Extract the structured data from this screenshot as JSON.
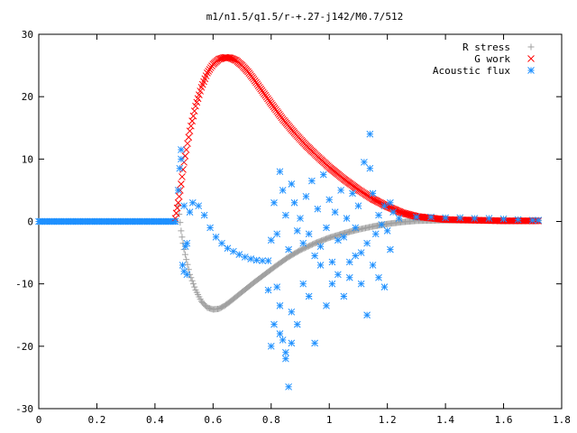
{
  "chart_data": {
    "type": "scatter",
    "title": "m1/n1.5/q1.5/r-+.27-j142/M0.7/512",
    "xlabel": "",
    "ylabel": "",
    "xlim": [
      0,
      1.8
    ],
    "ylim": [
      -30,
      30
    ],
    "x_ticks": [
      0,
      0.2,
      0.4,
      0.6,
      0.8,
      1,
      1.2,
      1.4,
      1.6,
      1.8
    ],
    "x_tick_labels": [
      "0",
      "0.2",
      "0.4",
      "0.6",
      "0.8",
      "1",
      "1.2",
      "1.4",
      "1.6",
      "1.8"
    ],
    "y_ticks": [
      -30,
      -20,
      -10,
      0,
      10,
      20,
      30
    ],
    "y_tick_labels": [
      "-30",
      "-20",
      "-10",
      "0",
      "10",
      "20",
      "30"
    ],
    "grid": false,
    "legend_position": "top-right",
    "series": [
      {
        "name": "R stress",
        "marker": "plus",
        "color": "#a0a0a0",
        "x": [
          0.48,
          0.49,
          0.5,
          0.52,
          0.54,
          0.56,
          0.58,
          0.6,
          0.62,
          0.64,
          0.66,
          0.7,
          0.74,
          0.78,
          0.82,
          0.86,
          0.9,
          0.95,
          1.0,
          1.05,
          1.1,
          1.15,
          1.2,
          1.25,
          1.3,
          1.4,
          1.5,
          1.6,
          1.7,
          1.72
        ],
        "y": [
          2.5,
          -1.5,
          -4.5,
          -8.5,
          -11.0,
          -12.8,
          -13.8,
          -14.1,
          -14.0,
          -13.5,
          -12.8,
          -11.3,
          -9.8,
          -8.4,
          -7.0,
          -5.7,
          -4.6,
          -3.5,
          -2.6,
          -1.9,
          -1.3,
          -0.8,
          -0.4,
          -0.1,
          0.1,
          0.2,
          0.2,
          0.1,
          0.1,
          0.1
        ]
      },
      {
        "name": "G work",
        "marker": "cross",
        "color": "#ff0000",
        "x": [
          0.47,
          0.48,
          0.49,
          0.5,
          0.52,
          0.54,
          0.56,
          0.58,
          0.6,
          0.62,
          0.64,
          0.66,
          0.68,
          0.7,
          0.72,
          0.74,
          0.76,
          0.78,
          0.8,
          0.84,
          0.88,
          0.92,
          0.96,
          1.0,
          1.05,
          1.1,
          1.15,
          1.2,
          1.25,
          1.3,
          1.4,
          1.5,
          1.6,
          1.7,
          1.72
        ],
        "y": [
          0.5,
          3.0,
          6.0,
          9.5,
          14.5,
          18.5,
          21.5,
          23.8,
          25.2,
          26.0,
          26.3,
          26.2,
          25.8,
          25.0,
          24.0,
          22.8,
          21.5,
          20.2,
          18.9,
          16.4,
          14.2,
          12.2,
          10.4,
          8.7,
          6.8,
          5.1,
          3.6,
          2.4,
          1.4,
          0.8,
          0.3,
          0.2,
          0.1,
          0.1,
          0.1
        ]
      },
      {
        "name": "Acoustic flux",
        "marker": "star",
        "color": "#1e90ff",
        "x": [
          0.47,
          0.48,
          0.49,
          0.5,
          0.51,
          0.52,
          0.53,
          0.55,
          0.57,
          0.59,
          0.61,
          0.63,
          0.65,
          0.67,
          0.69,
          0.71,
          0.73,
          0.75,
          0.77,
          0.79,
          0.485,
          0.49,
          0.495,
          0.5,
          0.505,
          0.51,
          0.8,
          0.81,
          0.82,
          0.83,
          0.84,
          0.85,
          0.86,
          0.87,
          0.88,
          0.89,
          0.9,
          0.91,
          0.92,
          0.93,
          0.94,
          0.95,
          0.96,
          0.97,
          0.98,
          0.99,
          1.0,
          1.01,
          1.02,
          1.03,
          1.04,
          1.05,
          1.06,
          1.07,
          1.08,
          1.09,
          1.1,
          1.11,
          1.12,
          1.13,
          1.14,
          1.15,
          1.16,
          1.17,
          1.18,
          1.19,
          1.2,
          1.21,
          1.22,
          0.79,
          0.8,
          0.81,
          0.82,
          0.83,
          0.84,
          0.85,
          0.86,
          0.87,
          0.89,
          0.91,
          0.93,
          0.95,
          0.97,
          0.99,
          1.01,
          1.03,
          1.05,
          1.07,
          1.09,
          1.11,
          1.13,
          1.15,
          1.17,
          1.19,
          1.21,
          0.83,
          0.85,
          0.87,
          1.14,
          1.24,
          1.3,
          1.35,
          1.4,
          1.45,
          1.5,
          1.55,
          1.6,
          1.65,
          1.7,
          1.72
        ],
        "y": [
          0,
          5.0,
          11.5,
          2.5,
          -3.5,
          1.5,
          3.0,
          2.5,
          1.0,
          -1.0,
          -2.5,
          -3.5,
          -4.3,
          -4.8,
          -5.3,
          -5.7,
          -6.0,
          -6.2,
          -6.3,
          -6.3,
          8.5,
          10.0,
          -7.0,
          -8.0,
          -4.0,
          -8.5,
          -3.0,
          3.0,
          -2.0,
          8.0,
          5.0,
          1.0,
          -4.5,
          6.0,
          3.0,
          -1.5,
          0.5,
          -3.5,
          4.0,
          -2.0,
          6.5,
          -5.5,
          2.0,
          -4.0,
          7.5,
          -1.0,
          3.5,
          -6.5,
          1.5,
          -3.0,
          5.0,
          -2.5,
          0.5,
          -6.5,
          4.5,
          -1.0,
          2.5,
          -5.0,
          9.5,
          -3.5,
          14.0,
          4.5,
          -2.0,
          1.0,
          -0.5,
          2.5,
          -1.5,
          3.0,
          1.5,
          -11.0,
          -20.0,
          -16.5,
          -10.5,
          -13.5,
          -19.0,
          -21.0,
          -26.5,
          -19.5,
          -16.5,
          -10.0,
          -12.0,
          -19.5,
          -7.0,
          -13.5,
          -10.0,
          -8.5,
          -12.0,
          -9.0,
          -5.5,
          -10.0,
          -15.0,
          -7.0,
          -9.0,
          -10.5,
          -4.5,
          -18.0,
          -22.0,
          -14.5,
          8.5,
          0.5,
          0.7,
          0.7,
          0.6,
          0.6,
          0.5,
          0.5,
          0.4,
          0.3,
          0.2,
          0.2
        ]
      }
    ]
  }
}
